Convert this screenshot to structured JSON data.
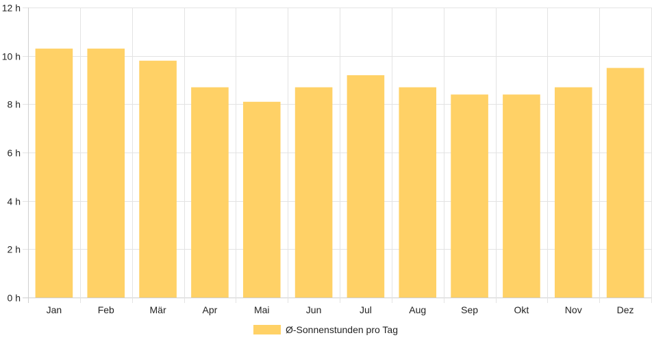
{
  "chart_data": {
    "type": "bar",
    "categories": [
      "Jan",
      "Feb",
      "Mär",
      "Apr",
      "Mai",
      "Jun",
      "Jul",
      "Aug",
      "Sep",
      "Okt",
      "Nov",
      "Dez"
    ],
    "series": [
      {
        "name": "Ø-Sonnenstunden pro Tag",
        "values": [
          10.3,
          10.3,
          9.8,
          8.7,
          8.1,
          8.7,
          9.2,
          8.7,
          8.4,
          8.4,
          8.7,
          9.5
        ],
        "color": "#ffd166"
      }
    ],
    "ylim": [
      0,
      12
    ],
    "yticks": [
      "0 h",
      "2 h",
      "4 h",
      "6 h",
      "8 h",
      "10 h",
      "12 h"
    ],
    "grid": true,
    "legend": "bottom-center"
  }
}
